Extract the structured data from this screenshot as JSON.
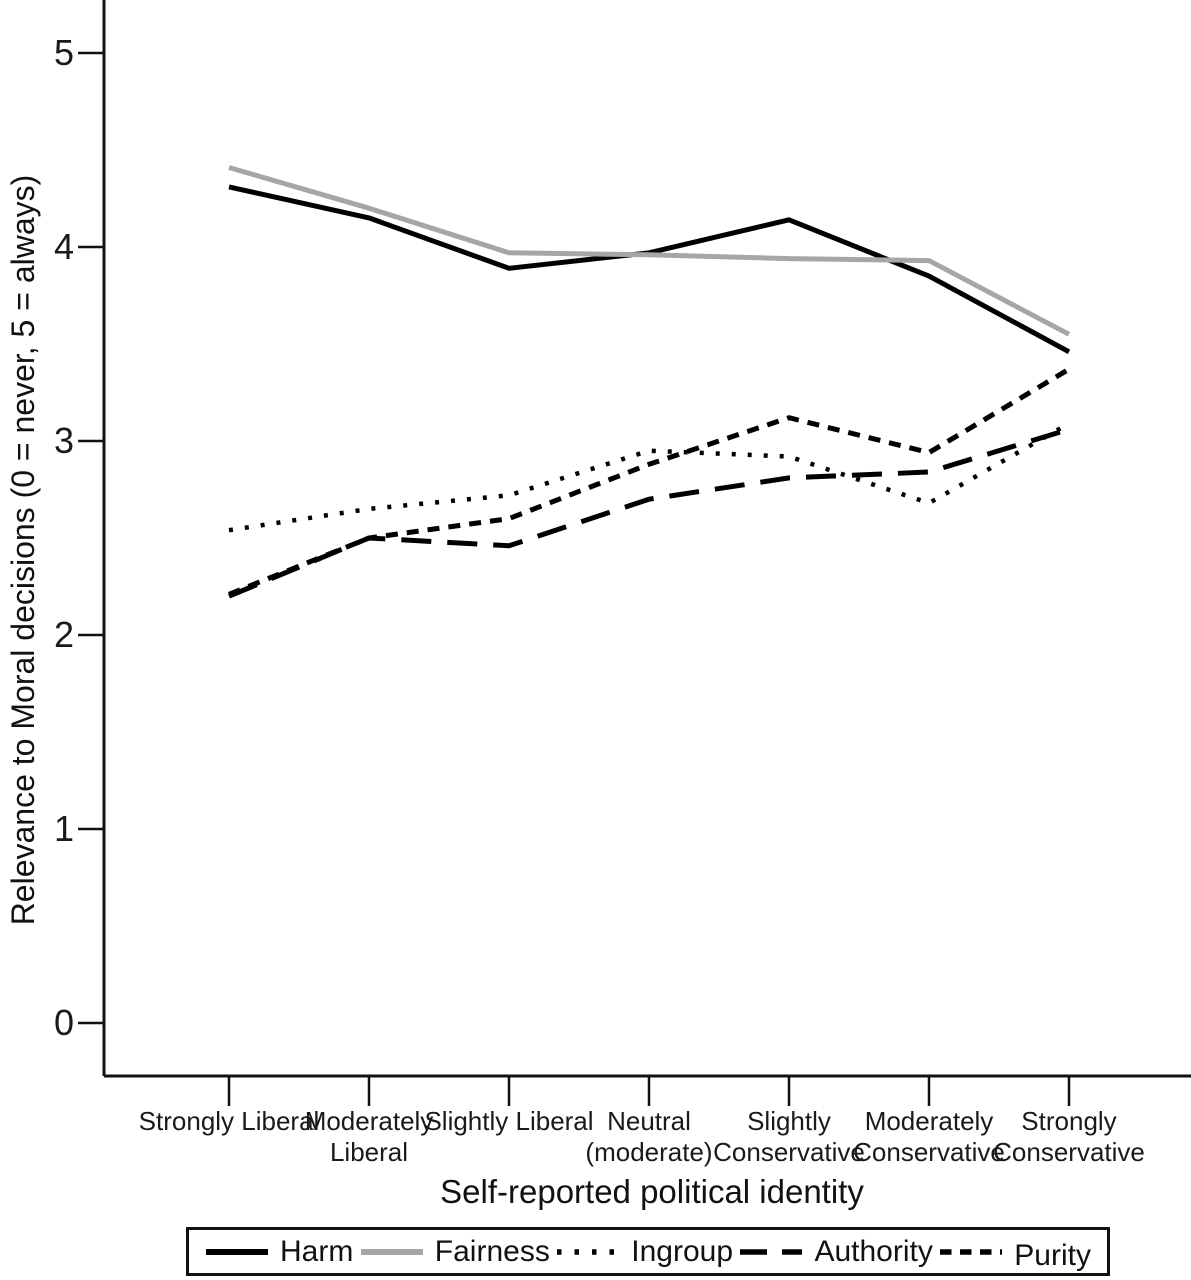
{
  "chart_data": {
    "type": "line",
    "title": "",
    "xlabel": "Self-reported political identity",
    "ylabel": "Relevance to Moral decisions (0 = never, 5 = always)",
    "ylim": [
      0,
      5
    ],
    "yticks": [
      0,
      1,
      2,
      3,
      4,
      5
    ],
    "grid": false,
    "legend_position": "bottom-boxed-horizontal",
    "categories": [
      "Strongly Liberal",
      "Moderately\nLiberal",
      "Slightly Liberal",
      "Neutral\n(moderate)",
      "Slightly\nConservative",
      "Moderately\nConservative",
      "Strongly\nConservative"
    ],
    "series": [
      {
        "name": "Harm",
        "style": "solid",
        "color": "#000000",
        "values": [
          4.31,
          4.15,
          3.89,
          3.97,
          4.14,
          3.85,
          3.46
        ]
      },
      {
        "name": "Fairness",
        "style": "solid",
        "color": "#a6a6a6",
        "values": [
          4.41,
          4.2,
          3.97,
          3.96,
          3.94,
          3.93,
          3.55
        ]
      },
      {
        "name": "Ingroup",
        "style": "dotted",
        "color": "#000000",
        "values": [
          2.54,
          2.65,
          2.72,
          2.95,
          2.92,
          2.68,
          3.09
        ]
      },
      {
        "name": "Authority",
        "style": "longdash",
        "color": "#000000",
        "values": [
          2.2,
          2.5,
          2.46,
          2.7,
          2.81,
          2.84,
          3.06
        ]
      },
      {
        "name": "Purity",
        "style": "shortdash",
        "color": "#000000",
        "values": [
          2.21,
          2.5,
          2.6,
          2.88,
          3.12,
          2.94,
          3.37
        ]
      }
    ]
  },
  "colors": {
    "axis": "#111111",
    "text": "#1a1a1a",
    "fairness_gray": "#a6a6a6",
    "background": "#ffffff"
  }
}
